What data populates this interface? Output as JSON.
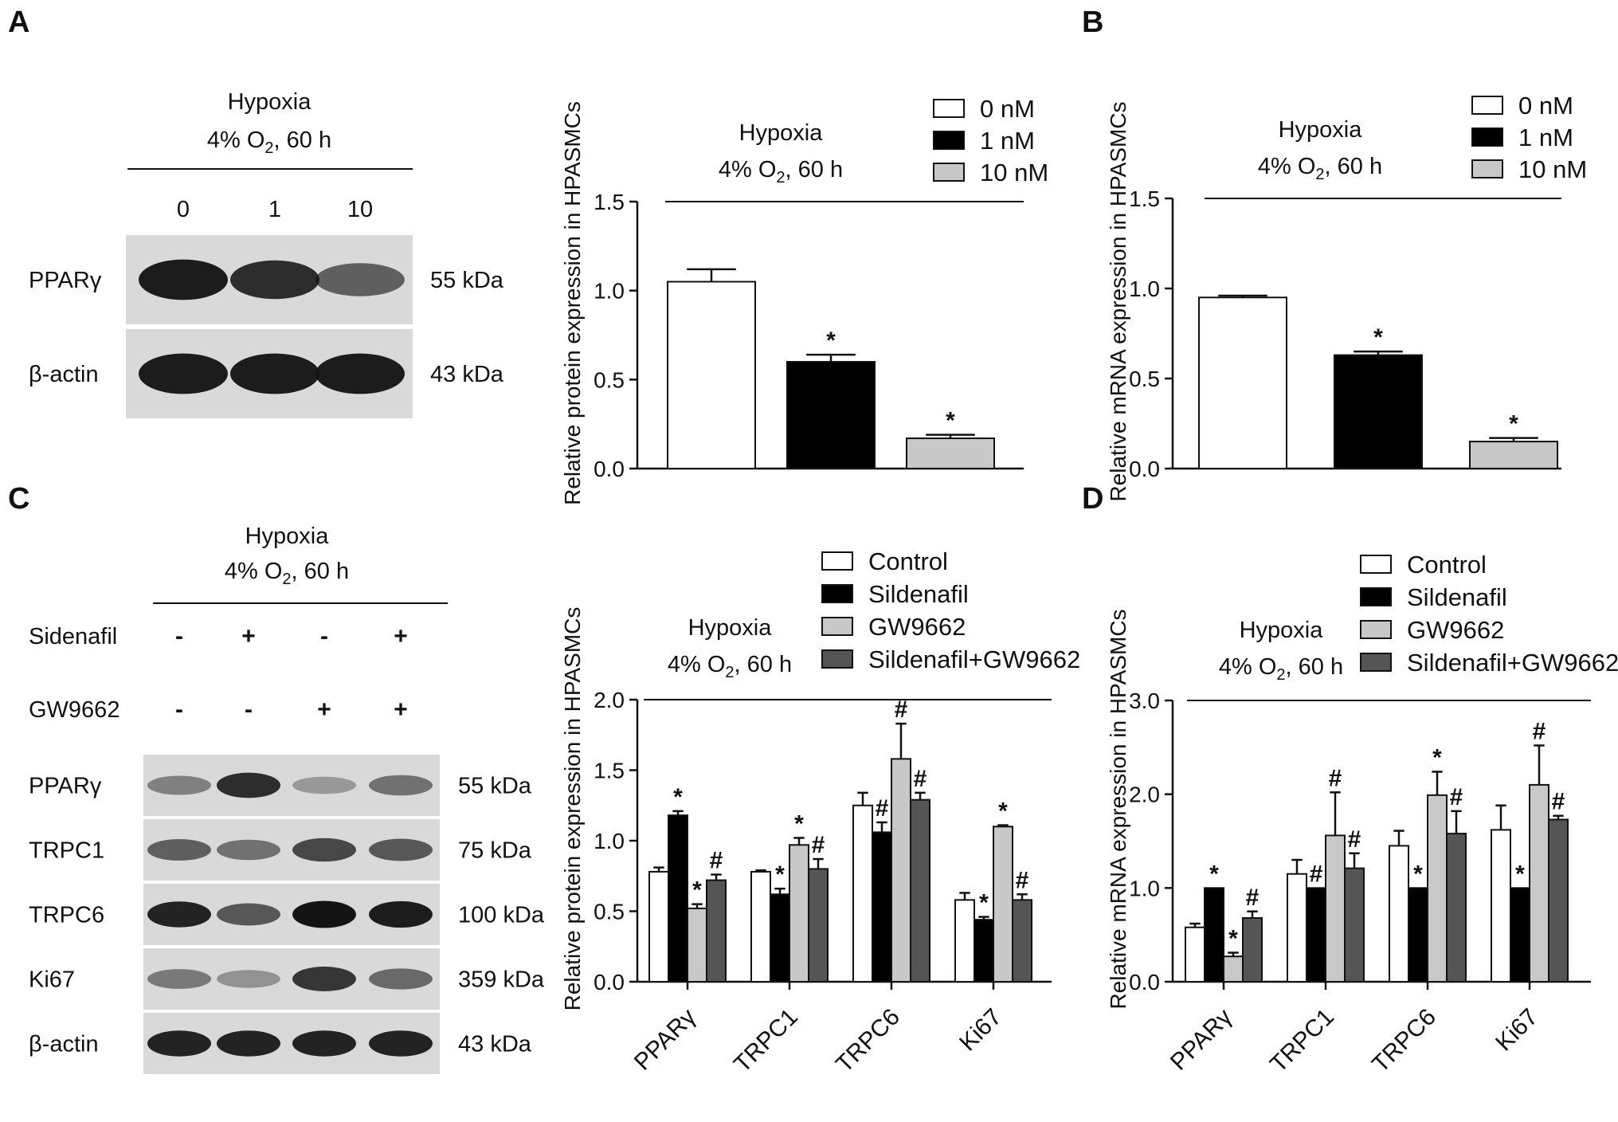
{
  "colors": {
    "control": "#ffffff",
    "dose1": "#000000",
    "dose10": "#c8c8c8",
    "sildenafil": "#000000",
    "gw9662": "#c8c8c8",
    "combo": "#555555",
    "axis": "#111111",
    "blot_bg": "#d9d9d9",
    "band": "#141414"
  },
  "panels": {
    "A": {
      "letter": "A",
      "blot": {
        "condition_line1": "Hypoxia",
        "condition_line2_pre": "4% O",
        "condition_line2_sub": "2",
        "condition_line2_post": ", 60 h",
        "lane_labels": [
          "0",
          "1",
          "10"
        ],
        "rows": [
          {
            "label": "PPARγ",
            "size": "55 kDa",
            "intensities": [
              0.95,
              0.85,
              0.55
            ]
          },
          {
            "label": "β-actin",
            "size": "43 kDa",
            "intensities": [
              0.95,
              0.95,
              0.95
            ]
          }
        ]
      }
    },
    "B": {
      "letter": "B"
    },
    "C": {
      "letter": "C",
      "blot": {
        "condition_line1": "Hypoxia",
        "condition_line2_pre": "4% O",
        "condition_line2_sub": "2",
        "condition_line2_post": ", 60 h",
        "treatments": [
          {
            "label": "Sidenafil",
            "signs": [
              "-",
              "+",
              "-",
              "+"
            ]
          },
          {
            "label": "GW9662",
            "signs": [
              "-",
              "-",
              "+",
              "+"
            ]
          }
        ],
        "rows": [
          {
            "label": "PPARγ",
            "size": "55 kDa",
            "intensities": [
              0.35,
              0.85,
              0.2,
              0.45
            ]
          },
          {
            "label": "TRPC1",
            "size": "75 kDa",
            "intensities": [
              0.55,
              0.45,
              0.7,
              0.6
            ]
          },
          {
            "label": "TRPC6",
            "size": "100 kDa",
            "intensities": [
              0.9,
              0.6,
              1.0,
              0.95
            ]
          },
          {
            "label": "Ki67",
            "size": "359 kDa",
            "intensities": [
              0.4,
              0.25,
              0.8,
              0.5
            ]
          },
          {
            "label": "β-actin",
            "size": "43 kDa",
            "intensities": [
              0.9,
              0.9,
              0.9,
              0.9
            ]
          }
        ]
      }
    },
    "D": {
      "letter": "D"
    }
  },
  "chart_data": [
    {
      "panel": "A",
      "type": "bar",
      "condition_line1": "Hypoxia",
      "condition_line2_pre": "4% O",
      "condition_line2_sub": "2",
      "condition_line2_post": ", 60 h",
      "ylabel": "Relative protein expression in HPASMCs",
      "ylim": [
        0,
        1.5
      ],
      "yticks": [
        "0.0",
        "0.5",
        "1.0",
        "1.5"
      ],
      "legend_position": "top-right",
      "series": [
        {
          "name": "0 nM",
          "value": 1.05,
          "error": 0.07,
          "mark": ""
        },
        {
          "name": "1 nM",
          "value": 0.6,
          "error": 0.04,
          "mark": "*"
        },
        {
          "name": "10 nM",
          "value": 0.17,
          "error": 0.02,
          "mark": "*"
        }
      ]
    },
    {
      "panel": "B",
      "type": "bar",
      "condition_line1": "Hypoxia",
      "condition_line2_pre": "4% O",
      "condition_line2_sub": "2",
      "condition_line2_post": ", 60 h",
      "ylabel": "Relative mRNA expression in HPASMCs",
      "ylim": [
        0,
        1.5
      ],
      "yticks": [
        "0.0",
        "0.5",
        "1.0",
        "1.5"
      ],
      "legend_position": "top-right",
      "series": [
        {
          "name": "0 nM",
          "value": 0.95,
          "error": 0.01,
          "mark": ""
        },
        {
          "name": "1 nM",
          "value": 0.63,
          "error": 0.02,
          "mark": "*"
        },
        {
          "name": "10 nM",
          "value": 0.15,
          "error": 0.02,
          "mark": "*"
        }
      ]
    },
    {
      "panel": "C",
      "type": "bar",
      "condition_line1": "Hypoxia",
      "condition_line2_pre": "4% O",
      "condition_line2_sub": "2",
      "condition_line2_post": ", 60 h",
      "ylabel": "Relative protein expression in HPASMCs",
      "ylim": [
        0,
        2.0
      ],
      "yticks": [
        "0.0",
        "0.5",
        "1.0",
        "1.5",
        "2.0"
      ],
      "categories": [
        "PPARγ",
        "TRPC1",
        "TRPC6",
        "Ki67"
      ],
      "legend_position": "top-right",
      "series": [
        {
          "name": "Control",
          "values": [
            0.78,
            0.78,
            1.25,
            0.58
          ],
          "errors": [
            0.03,
            0.01,
            0.09,
            0.05
          ],
          "marks": [
            "",
            "",
            "",
            ""
          ]
        },
        {
          "name": "Sildenafil",
          "values": [
            1.18,
            0.62,
            1.06,
            0.44
          ],
          "errors": [
            0.03,
            0.04,
            0.07,
            0.02
          ],
          "marks": [
            "*",
            "*",
            "#",
            "*"
          ]
        },
        {
          "name": "GW9662",
          "values": [
            0.52,
            0.97,
            1.58,
            1.1
          ],
          "errors": [
            0.03,
            0.05,
            0.25,
            0.01
          ],
          "marks": [
            "*",
            "*",
            "#",
            "*"
          ]
        },
        {
          "name": "Sildenafil+GW9662",
          "values": [
            0.72,
            0.8,
            1.29,
            0.58
          ],
          "errors": [
            0.04,
            0.07,
            0.05,
            0.04
          ],
          "marks": [
            "#",
            "#",
            "#",
            "#"
          ]
        }
      ]
    },
    {
      "panel": "D",
      "type": "bar",
      "condition_line1": "Hypoxia",
      "condition_line2_pre": "4% O",
      "condition_line2_sub": "2",
      "condition_line2_post": ", 60 h",
      "ylabel": "Relative mRNA expression in HPASMCs",
      "ylim": [
        0,
        3.0
      ],
      "yticks": [
        "0.0",
        "1.0",
        "2.0",
        "3.0"
      ],
      "categories": [
        "PPARγ",
        "TRPC1",
        "TRPC6",
        "Ki67"
      ],
      "legend_position": "top-right",
      "series": [
        {
          "name": "Control",
          "values": [
            0.58,
            1.15,
            1.45,
            1.62
          ],
          "errors": [
            0.04,
            0.15,
            0.16,
            0.26
          ],
          "marks": [
            "",
            "",
            "",
            ""
          ]
        },
        {
          "name": "Sildenafil",
          "values": [
            1.0,
            1.0,
            1.0,
            1.0
          ],
          "errors": [
            0.0,
            0.0,
            0.0,
            0.0
          ],
          "marks": [
            "*",
            "#",
            "*",
            "*"
          ]
        },
        {
          "name": "GW9662",
          "values": [
            0.27,
            1.56,
            1.99,
            2.1
          ],
          "errors": [
            0.04,
            0.46,
            0.25,
            0.42
          ],
          "marks": [
            "*",
            "#",
            "*",
            "#"
          ]
        },
        {
          "name": "Sildenafil+GW9662",
          "values": [
            0.68,
            1.21,
            1.58,
            1.73
          ],
          "errors": [
            0.07,
            0.16,
            0.24,
            0.04
          ],
          "marks": [
            "#",
            "#",
            "#",
            "#"
          ]
        }
      ]
    }
  ]
}
